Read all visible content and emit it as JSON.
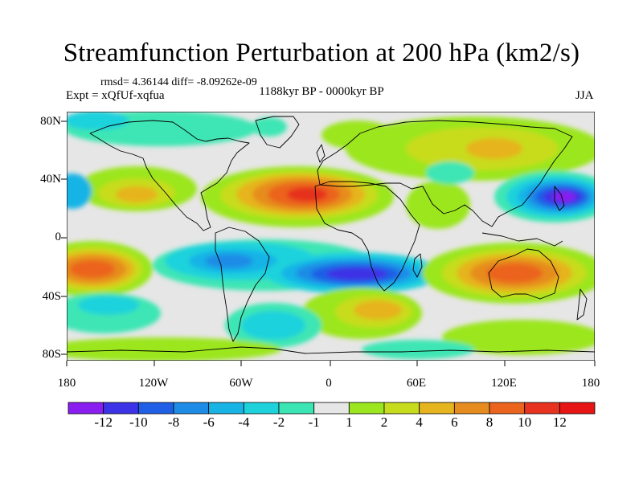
{
  "title": "Streamfunction Perturbation at 200 hPa (km2/s)",
  "stats": "rmsd= 4.36144 diff= -8.09262e-09",
  "experiment": "Expt = xQfUf-xqfua",
  "period": "1188kyr BP - 0000kyr BP",
  "season": "JJA",
  "y_ticks": [
    "80N",
    "40N",
    "0",
    "40S",
    "80S"
  ],
  "x_ticks": [
    "180",
    "120W",
    "60W",
    "0",
    "60E",
    "120E",
    "180"
  ],
  "colorbar": {
    "labels": [
      "-12",
      "-10",
      "-8",
      "-6",
      "-4",
      "-2",
      "-1",
      "1",
      "2",
      "4",
      "6",
      "8",
      "10",
      "12"
    ],
    "colors": [
      "#8a1ef0",
      "#3c32e6",
      "#1e5fe6",
      "#1e8ce6",
      "#19b4e6",
      "#1ed2dc",
      "#3ce6b4",
      "#e6e6e6",
      "#9be61e",
      "#c8dc1e",
      "#e6b41e",
      "#e68c1e",
      "#eb641e",
      "#e6321e",
      "#e61414"
    ]
  },
  "map_data": {
    "anomalies": [
      {
        "region": "North Atlantic / North Africa",
        "value": 12
      },
      {
        "region": "Northwest Pacific",
        "value": -12
      },
      {
        "region": "South Atlantic",
        "value": -10
      },
      {
        "region": "Australia / Indian Ocean",
        "value": 10
      },
      {
        "region": "South Pacific (west)",
        "value": 8
      },
      {
        "region": "Southern Indian Ocean",
        "value": 6
      },
      {
        "region": "Siberia",
        "value": 6
      },
      {
        "region": "South America Pacific",
        "value": -6
      }
    ]
  }
}
